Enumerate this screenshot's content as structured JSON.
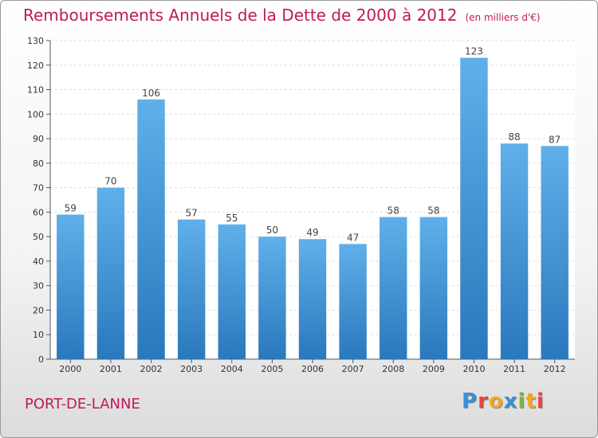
{
  "header": {
    "title": "Remboursements Annuels de la Dette de 2000 à 2012",
    "unit": "(en milliers d'€)"
  },
  "footer": {
    "city": "PORT-DE-LANNE",
    "logo": [
      "P",
      "r",
      "o",
      "x",
      "i",
      "t",
      "i"
    ],
    "logo_colors": [
      "#3a8fd6",
      "#e8453c",
      "#f5a623",
      "#3a8fd6",
      "#7cb342",
      "#f5a623",
      "#e8453c"
    ]
  },
  "colors": {
    "bar_top": "#5fb0ea",
    "bar_bottom": "#2a78bd",
    "accent": "#c2185b"
  },
  "chart_data": {
    "type": "bar",
    "title": "Remboursements Annuels de la Dette de 2000 à 2012",
    "categories": [
      "2000",
      "2001",
      "2002",
      "2003",
      "2004",
      "2005",
      "2006",
      "2007",
      "2008",
      "2009",
      "2010",
      "2011",
      "2012"
    ],
    "values": [
      59,
      70,
      106,
      57,
      55,
      50,
      49,
      47,
      58,
      58,
      123,
      88,
      87
    ],
    "ylim": [
      0,
      130
    ],
    "yticks": [
      0,
      10,
      20,
      30,
      40,
      50,
      60,
      70,
      80,
      90,
      100,
      110,
      120,
      130
    ],
    "grid": true
  }
}
